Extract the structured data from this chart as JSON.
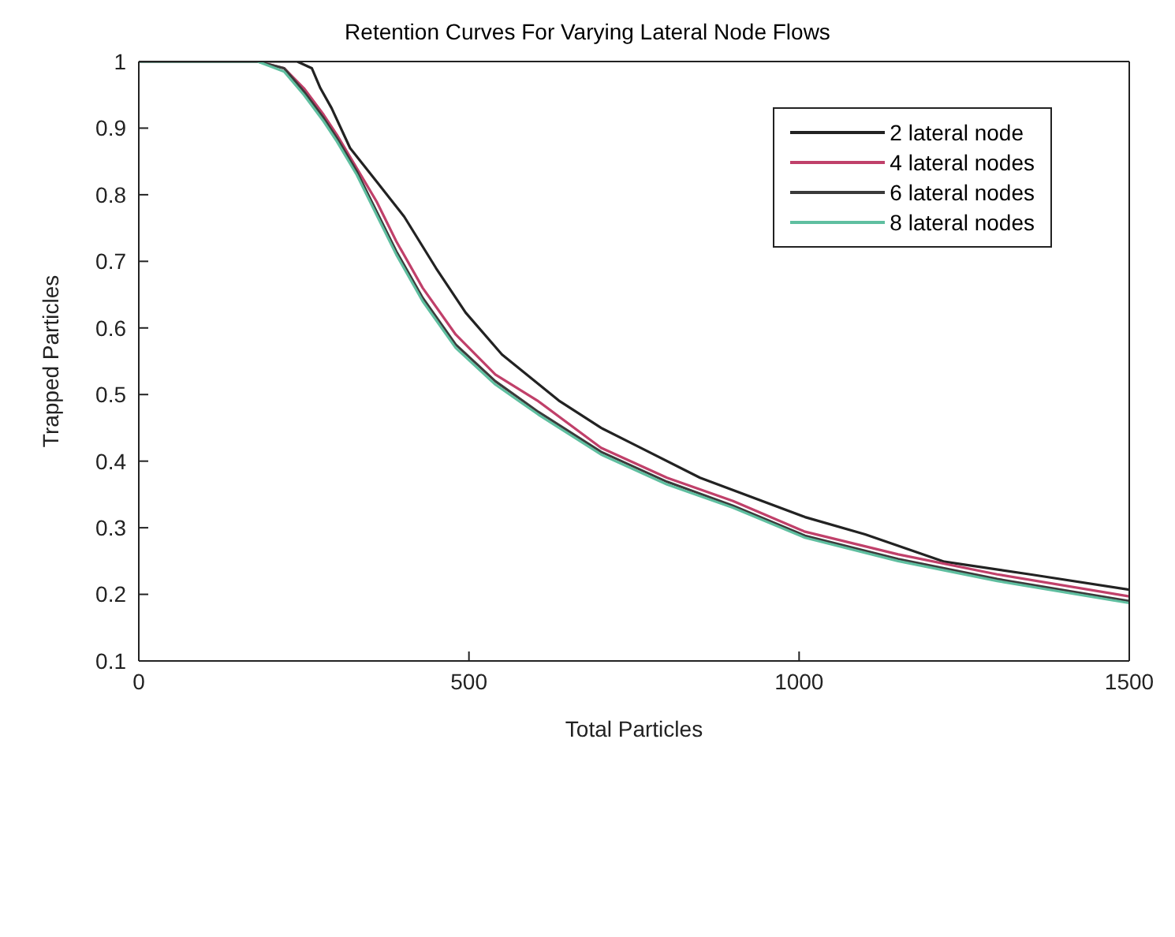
{
  "chart_data": {
    "type": "line",
    "title": "Retention Curves For Varying Lateral Node Flows",
    "xlabel": "Total Particles",
    "ylabel": "Trapped Particles",
    "xlim": [
      0,
      1500
    ],
    "xticks": [
      0,
      500,
      1000,
      1500
    ],
    "ylim": [
      0.1,
      1
    ],
    "yticks": [
      0.1,
      0.2,
      0.3,
      0.4,
      0.5,
      0.6,
      0.7,
      0.8,
      0.9,
      1
    ],
    "grid": false,
    "legend": "top right",
    "marker": "none",
    "line_style": "solid",
    "series": [
      {
        "name": "2 lateral node",
        "color": "#222222",
        "x": [
          0,
          240,
          262,
          275,
          292,
          320,
          360,
          402,
          450,
          495,
          550,
          636,
          700,
          752,
          850,
          1009,
          1100,
          1220,
          1350,
          1500
        ],
        "values": [
          1,
          1,
          0.99,
          0.96,
          0.93,
          0.87,
          0.82,
          0.767,
          0.69,
          0.623,
          0.56,
          0.491,
          0.45,
          0.424,
          0.375,
          0.316,
          0.29,
          0.249,
          0.23,
          0.207
        ]
      },
      {
        "name": "4 lateral nodes",
        "color": "#c0406a",
        "x": [
          0,
          180,
          220,
          250,
          280,
          300,
          330,
          360,
          390,
          430,
          480,
          540,
          605,
          700,
          800,
          900,
          1009,
          1150,
          1300,
          1500
        ],
        "values": [
          1,
          1,
          0.99,
          0.96,
          0.92,
          0.89,
          0.84,
          0.79,
          0.73,
          0.66,
          0.59,
          0.53,
          0.49,
          0.42,
          0.375,
          0.34,
          0.294,
          0.26,
          0.23,
          0.197
        ]
      },
      {
        "name": "6 lateral nodes",
        "color": "#3a3a3a",
        "x": [
          0,
          180,
          220,
          250,
          280,
          300,
          330,
          360,
          390,
          430,
          480,
          540,
          605,
          700,
          800,
          900,
          1009,
          1150,
          1300,
          1500
        ],
        "values": [
          1,
          1,
          0.99,
          0.955,
          0.915,
          0.885,
          0.835,
          0.775,
          0.715,
          0.645,
          0.575,
          0.52,
          0.474,
          0.414,
          0.369,
          0.333,
          0.288,
          0.253,
          0.223,
          0.19
        ]
      },
      {
        "name": "8 lateral nodes",
        "color": "#5fbfa0",
        "x": [
          0,
          180,
          220,
          250,
          280,
          300,
          330,
          360,
          390,
          430,
          480,
          540,
          605,
          700,
          800,
          900,
          1009,
          1150,
          1300,
          1500
        ],
        "values": [
          1,
          1,
          0.985,
          0.95,
          0.91,
          0.88,
          0.83,
          0.77,
          0.71,
          0.64,
          0.57,
          0.515,
          0.47,
          0.41,
          0.365,
          0.33,
          0.285,
          0.25,
          0.22,
          0.187
        ]
      }
    ]
  }
}
